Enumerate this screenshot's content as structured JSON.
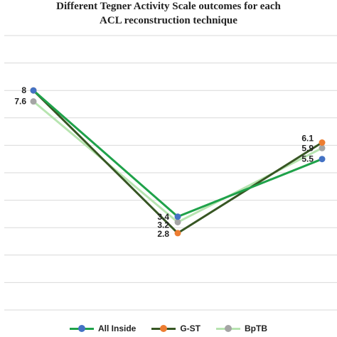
{
  "chart_data": {
    "type": "line",
    "title_lines": [
      "Different Tegner Activity Scale outcomes for each",
      "ACL reconstruction technique"
    ],
    "xlabel": "",
    "ylabel": "",
    "categories": [
      "",
      "",
      ""
    ],
    "ylim": [
      0,
      10
    ],
    "grid": true,
    "legend_position": "bottom",
    "series": [
      {
        "name": "All Inside",
        "values": [
          8,
          3.4,
          5.5
        ],
        "line_color": "#1fa24a",
        "marker_color": "#4472c4"
      },
      {
        "name": "G-ST",
        "values": [
          8,
          2.8,
          6.1
        ],
        "line_color": "#375623",
        "marker_color": "#ed7d31"
      },
      {
        "name": "BpTB",
        "values": [
          7.6,
          3.2,
          5.9
        ],
        "line_color": "#b7e4b0",
        "marker_color": "#a5a5a5"
      }
    ],
    "data_labels": [
      {
        "text": "8",
        "series": 0,
        "point": 0
      },
      {
        "text": "7.6",
        "series": 2,
        "point": 0
      },
      {
        "text": "3.4",
        "series": 0,
        "point": 1
      },
      {
        "text": "3.2",
        "series": 2,
        "point": 1
      },
      {
        "text": "2.8",
        "series": 1,
        "point": 1
      },
      {
        "text": "6.1",
        "series": 1,
        "point": 2
      },
      {
        "text": "5.9",
        "series": 2,
        "point": 2
      },
      {
        "text": "5.5",
        "series": 0,
        "point": 2
      }
    ]
  }
}
